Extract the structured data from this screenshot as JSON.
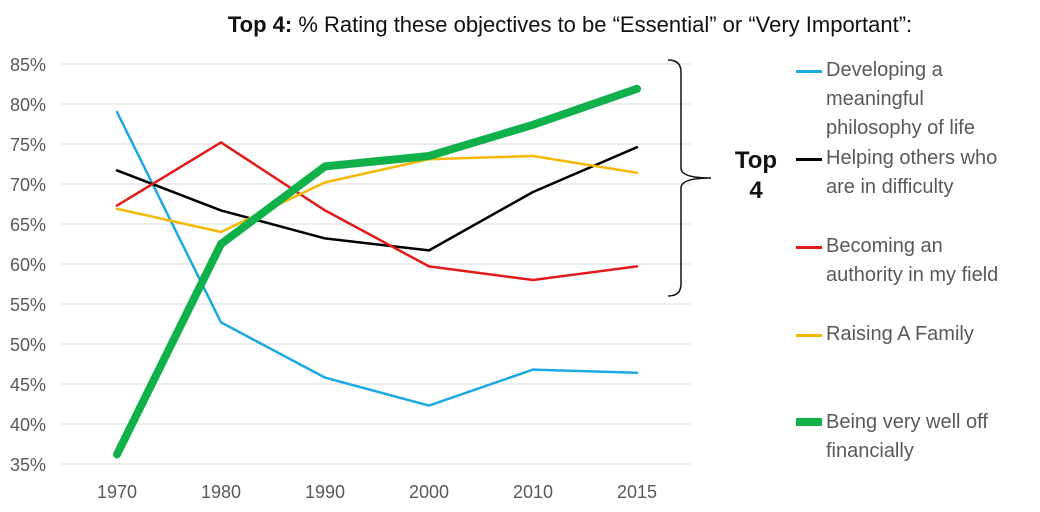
{
  "title": {
    "bold": "Top 4:",
    "rest": " % Rating these objectives to be “Essential”  or “Very Important”:"
  },
  "annotation": {
    "line1": "Top",
    "line2": "4"
  },
  "chart_data": {
    "type": "line",
    "x": [
      "1970",
      "1980",
      "1990",
      "2000",
      "2010",
      "2015"
    ],
    "ylim": [
      35,
      85
    ],
    "yticks": [
      "35%",
      "40%",
      "45%",
      "50%",
      "55%",
      "60%",
      "65%",
      "70%",
      "75%",
      "80%",
      "85%"
    ],
    "grid": true,
    "legend": "right",
    "series": [
      {
        "name": "Developing a meaningful philosophy of life",
        "color": "#1CA9E1",
        "width": 2.5,
        "values": [
          79,
          52.7,
          45.8,
          42.3,
          46.8,
          46.4
        ]
      },
      {
        "name": "Helping others who are in difficulty",
        "color": "#000000",
        "width": 2.5,
        "values": [
          71.7,
          66.7,
          63.2,
          61.7,
          69,
          74.6
        ]
      },
      {
        "name": "Becoming an authority in my field",
        "color": "#E31A1C",
        "width": 2.5,
        "values": [
          67.3,
          75.2,
          66.7,
          59.7,
          58,
          59.7
        ]
      },
      {
        "name": "Raising A Family",
        "color": "#F5B800",
        "width": 2.5,
        "values": [
          66.9,
          64,
          70.2,
          73.1,
          73.5,
          71.4
        ]
      },
      {
        "name": "Being very well off financially",
        "color": "#10B04A",
        "width": 8,
        "values": [
          36.2,
          62.5,
          72.2,
          73.5,
          77.4,
          81.9
        ]
      }
    ]
  },
  "legend_lines": [
    [
      "Developing a",
      "meaningful",
      "philosophy of life"
    ],
    [
      "Helping others who",
      "are in difficulty"
    ],
    [
      "Becoming an",
      "authority in my field"
    ],
    [
      "Raising A Family"
    ],
    [
      "Being very well off",
      "financially"
    ]
  ]
}
